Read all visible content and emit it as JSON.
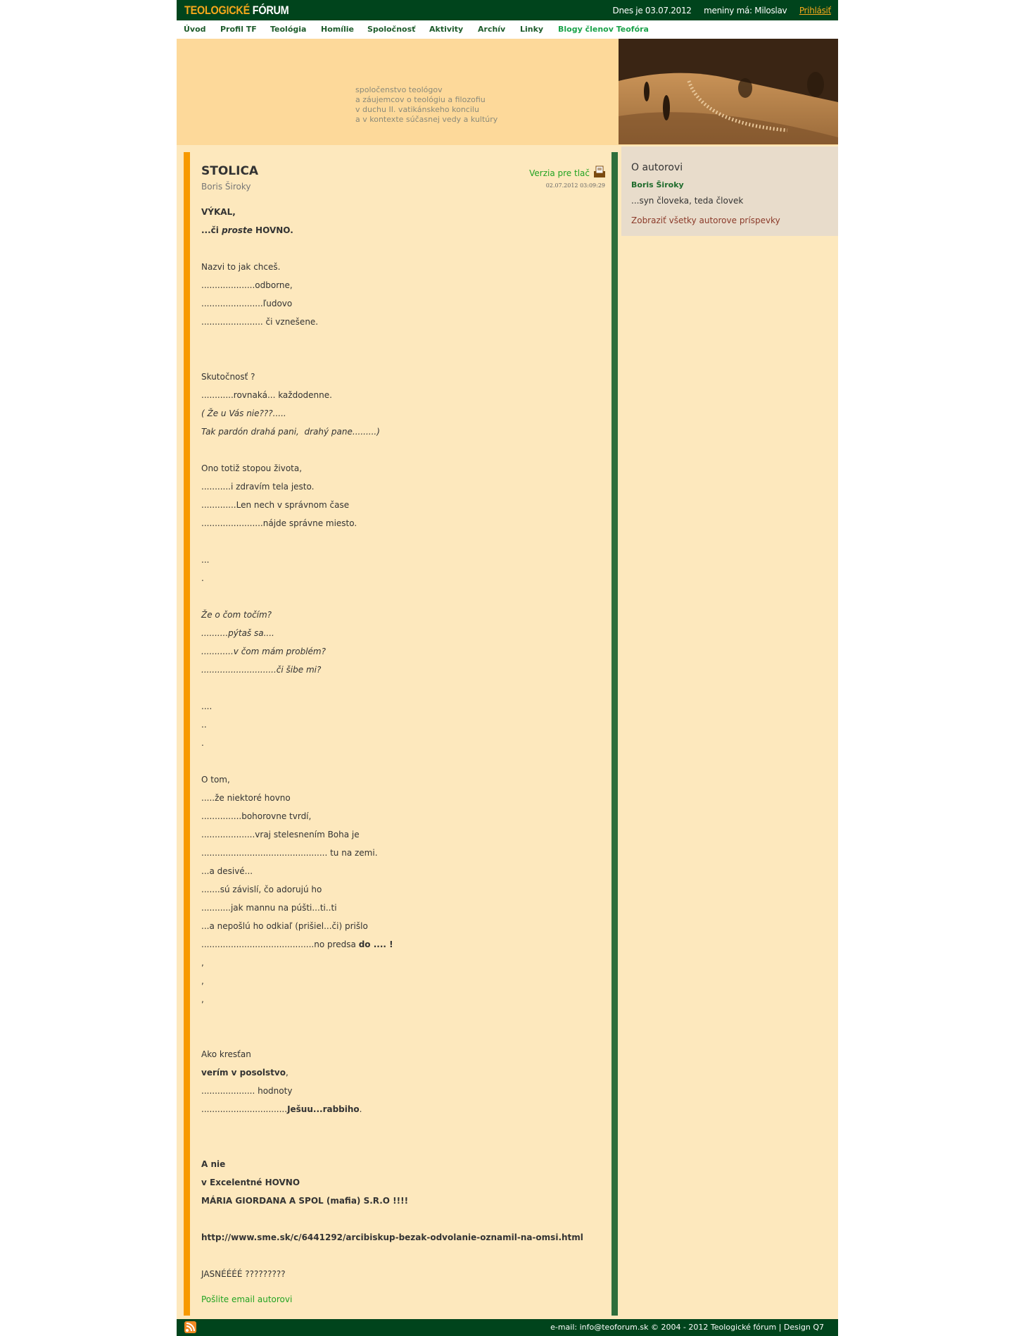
{
  "header": {
    "logo_part1": "TEOLOGICKÉ",
    "logo_part2": "FÓRUM",
    "date_text": "Dnes je 03.07.2012",
    "nameday_text": "meniny má: Miloslav",
    "login_label": "Prihlásiť"
  },
  "nav": {
    "items": [
      {
        "label": "Úvod"
      },
      {
        "label": "Profil TF"
      },
      {
        "label": "Teológia"
      },
      {
        "label": "Homílie"
      },
      {
        "label": "Spoločnosť"
      },
      {
        "label": "Aktivity"
      },
      {
        "label": "Archív"
      },
      {
        "label": "Linky"
      },
      {
        "label": "Blogy členov Teofóra"
      }
    ]
  },
  "banner": {
    "tagline": [
      "spoločenstvo teológov",
      "a záujemcov o teológiu a filozofiu",
      "v duchu II. vatikánskeho koncilu",
      "a v kontexte súčasnej vedy a kultúry"
    ]
  },
  "article": {
    "title": "STOLICA",
    "author": "Boris Široky",
    "print_label": "Verzia pre tlač",
    "datetime": "02.07.2012 03:09:29",
    "lines": [
      [
        {
          "t": "VÝKAL,",
          "b": true
        }
      ],
      [
        {
          "t": "...či ",
          "b": true
        },
        {
          "t": "proste",
          "b": true,
          "i": true
        },
        {
          "t": " HOVNO.",
          "b": true
        }
      ],
      [],
      [
        {
          "t": "Nazvi to jak chceš."
        }
      ],
      [
        {
          "t": "....................odborne,"
        }
      ],
      [
        {
          "t": ".......................ľudovo"
        }
      ],
      [
        {
          "t": "....................... či vznešene."
        }
      ],
      [],
      [],
      [
        {
          "t": "Skutočnosť ?"
        }
      ],
      [
        {
          "t": "............rovnaká... každodenne."
        }
      ],
      [
        {
          "t": "( Že u Vás nie???.....",
          "i": true
        }
      ],
      [
        {
          "t": "Tak pardón drahá pani,  drahý pane.........)",
          "i": true
        }
      ],
      [],
      [
        {
          "t": "Ono totiž stopou života,"
        }
      ],
      [
        {
          "t": "...........i zdravím tela jesto."
        }
      ],
      [
        {
          "t": ".............Len nech v správnom čase"
        }
      ],
      [
        {
          "t": ".......................nájde správne miesto."
        }
      ],
      [],
      [
        {
          "t": "..."
        }
      ],
      [
        {
          "t": "."
        }
      ],
      [],
      [
        {
          "t": "Že o čom točím?",
          "i": true
        }
      ],
      [
        {
          "t": "..........pýtaš sa....",
          "i": true
        }
      ],
      [
        {
          "t": "............v čom mám problém?",
          "i": true
        }
      ],
      [
        {
          "t": "............................či šibe mi?",
          "i": true
        }
      ],
      [],
      [
        {
          "t": "...."
        }
      ],
      [
        {
          "t": ".."
        }
      ],
      [
        {
          "t": "."
        }
      ],
      [],
      [
        {
          "t": "O tom,"
        }
      ],
      [
        {
          "t": ".....že niektoré hovno"
        }
      ],
      [
        {
          "t": "...............bohorovne tvrdí,"
        }
      ],
      [
        {
          "t": "....................vraj stelesnením Boha je"
        }
      ],
      [
        {
          "t": "............................................... tu na zemi."
        }
      ],
      [
        {
          "t": "...a desivé..."
        }
      ],
      [
        {
          "t": ".......sú závislí, čo adorujú ho"
        }
      ],
      [
        {
          "t": "...........jak mannu na púšti...ti..ti"
        }
      ],
      [
        {
          "t": "...a nepošlú ho odkiaľ (prišiel...či) prišlo"
        }
      ],
      [
        {
          "t": "..........................................no predsa "
        },
        {
          "t": "do .... !",
          "b": true
        }
      ],
      [
        {
          "t": ","
        }
      ],
      [
        {
          "t": ","
        }
      ],
      [
        {
          "t": ","
        }
      ],
      [],
      [],
      [
        {
          "t": "Ako kresťan"
        }
      ],
      [
        {
          "t": "verím v posolstvo",
          "b": true
        },
        {
          "t": ","
        }
      ],
      [
        {
          "t": ".................... hodnoty"
        }
      ],
      [
        {
          "t": "................................"
        },
        {
          "t": "Ješuu...rabbiho",
          "b": true
        },
        {
          "t": "."
        }
      ],
      [],
      [],
      [
        {
          "t": "A nie",
          "b": true
        }
      ],
      [
        {
          "t": "v Excelentné HOVNO",
          "b": true
        }
      ],
      [
        {
          "t": "MÁRIA GIORDANA A SPOL (mafia) S.R.O !!!!",
          "b": true
        }
      ],
      [],
      [
        {
          "t": "http://www.sme.sk/c/6441292/arcibiskup-bezak-odvolanie-oznamil-na-omsi.html",
          "b": true
        }
      ],
      [],
      [
        {
          "t": "JASNÉÉÉÉ ?????????"
        }
      ]
    ],
    "email_author_label": "Pošlite email autorovi"
  },
  "sidebar": {
    "title": "O autorovi",
    "author_name": "Boris Široky",
    "author_desc": "...syn človeka, teda človek",
    "all_posts_link": "Zobraziť všetky autorove príspevky"
  },
  "footer": {
    "text": "e-mail: info@teoforum.sk © 2004 - 2012 Teologické fórum | Design Q7",
    "rss_icon": "rss-icon"
  },
  "colors": {
    "header_bg": "#00441c",
    "accent_orange": "#f79a00",
    "accent_green": "#2e6e3b",
    "content_bg": "#fde8bd",
    "banner_bg": "#fdd99a",
    "sidebar_bg": "#e8dccb",
    "link_green": "#22a322"
  }
}
